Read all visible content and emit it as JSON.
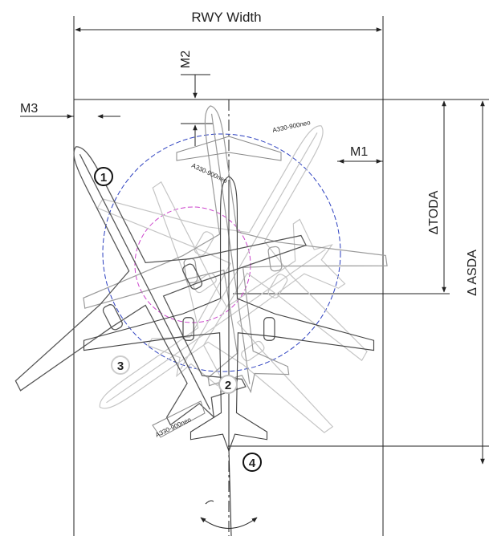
{
  "labels": {
    "rwy_width": "RWY Width",
    "m1": "M1",
    "m2": "M2",
    "m3": "M3",
    "delta_toda": "ΔTODA",
    "delta_asda": "Δ ASDA"
  },
  "markers": {
    "pos1": "1",
    "pos2": "2",
    "pos3": "3",
    "pos4": "4"
  },
  "aircraft_text": "A330-900neo",
  "colors": {
    "line": "#222222",
    "aircraft_dark": "#555555",
    "aircraft_light": "#b8b8b8",
    "circle_blue": "#2b3fbf",
    "circle_magenta": "#cc44cc"
  }
}
